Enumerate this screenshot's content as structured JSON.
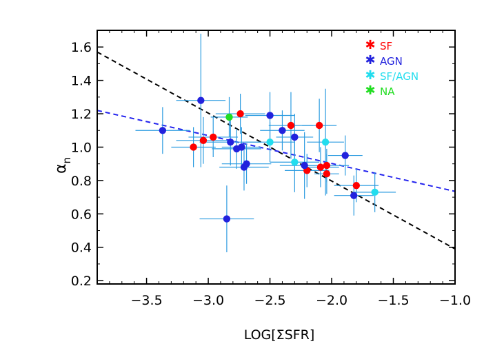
{
  "chart_data": {
    "type": "scatter",
    "title": "",
    "xlabel": "LOG[ΣSFR]",
    "ylabel_main": "α",
    "ylabel_sub": "n",
    "xlim": [
      -3.9,
      -1.0
    ],
    "ylim": [
      0.18,
      1.7
    ],
    "x_ticks": [
      -3.5,
      -3.0,
      -2.5,
      -2.0,
      -1.5,
      -1.0
    ],
    "x_tick_labels": [
      "−3.5",
      "−3.0",
      "−2.5",
      "−2.0",
      "−1.5",
      "−1.0"
    ],
    "y_ticks": [
      0.2,
      0.4,
      0.6,
      0.8,
      1.0,
      1.2,
      1.4,
      1.6
    ],
    "y_tick_labels": [
      "0.2",
      "0.4",
      "0.6",
      "0.8",
      "1.0",
      "1.2",
      "1.4",
      "1.6"
    ],
    "grid": false,
    "legend_position": "top-right",
    "colors": {
      "SF": "#ff0000",
      "AGN": "#2222dd",
      "SF/AGN": "#22ddee",
      "NA": "#22dd22",
      "errorbar": "#2b9be0"
    },
    "series": [
      {
        "name": "SF",
        "color": "#ff0000",
        "points": [
          {
            "x": -3.12,
            "y": 1.0,
            "xerr": 0.18,
            "yerr": 0.12
          },
          {
            "x": -3.04,
            "y": 1.04,
            "xerr": 0.22,
            "yerr": 0.14
          },
          {
            "x": -2.96,
            "y": 1.06,
            "xerr": 0.2,
            "yerr": 0.12
          },
          {
            "x": -2.74,
            "y": 1.2,
            "xerr": 0.2,
            "yerr": 0.12
          },
          {
            "x": -2.33,
            "y": 1.13,
            "xerr": 0.18,
            "yerr": 0.2
          },
          {
            "x": -2.1,
            "y": 1.13,
            "xerr": 0.14,
            "yerr": 0.16
          },
          {
            "x": -2.2,
            "y": 0.86,
            "xerr": 0.18,
            "yerr": 0.1
          },
          {
            "x": -2.09,
            "y": 0.88,
            "xerr": 0.15,
            "yerr": 0.12
          },
          {
            "x": -2.04,
            "y": 0.89,
            "xerr": 0.18,
            "yerr": 0.1
          },
          {
            "x": -2.04,
            "y": 0.84,
            "xerr": 0.1,
            "yerr": 0.12
          },
          {
            "x": -1.8,
            "y": 0.77,
            "xerr": 0.18,
            "yerr": 0.1
          }
        ]
      },
      {
        "name": "AGN",
        "color": "#2222dd",
        "points": [
          {
            "x": -3.37,
            "y": 1.1,
            "xerr": 0.22,
            "yerr": 0.14
          },
          {
            "x": -3.06,
            "y": 1.28,
            "xerr": 0.2,
            "yerr": 0.4
          },
          {
            "x": -2.82,
            "y": 1.03,
            "xerr": 0.25,
            "yerr": 0.14
          },
          {
            "x": -2.77,
            "y": 0.99,
            "xerr": 0.2,
            "yerr": 0.12
          },
          {
            "x": -2.73,
            "y": 1.0,
            "xerr": 0.16,
            "yerr": 0.12
          },
          {
            "x": -2.71,
            "y": 0.88,
            "xerr": 0.2,
            "yerr": 0.14
          },
          {
            "x": -2.69,
            "y": 0.9,
            "xerr": 0.2,
            "yerr": 0.12
          },
          {
            "x": -2.85,
            "y": 0.57,
            "xerr": 0.22,
            "yerr": 0.2
          },
          {
            "x": -2.5,
            "y": 1.19,
            "xerr": 0.2,
            "yerr": 0.14
          },
          {
            "x": -2.4,
            "y": 1.1,
            "xerr": 0.18,
            "yerr": 0.12
          },
          {
            "x": -2.3,
            "y": 1.06,
            "xerr": 0.15,
            "yerr": 0.14
          },
          {
            "x": -2.22,
            "y": 0.89,
            "xerr": 0.2,
            "yerr": 0.2
          },
          {
            "x": -1.89,
            "y": 0.95,
            "xerr": 0.14,
            "yerr": 0.12
          },
          {
            "x": -1.82,
            "y": 0.71,
            "xerr": 0.16,
            "yerr": 0.12
          }
        ]
      },
      {
        "name": "SF/AGN",
        "color": "#22ddee",
        "points": [
          {
            "x": -2.5,
            "y": 1.03,
            "xerr": 0.2,
            "yerr": 0.12
          },
          {
            "x": -2.3,
            "y": 0.91,
            "xerr": 0.2,
            "yerr": 0.18
          },
          {
            "x": -2.05,
            "y": 1.03,
            "xerr": 0.15,
            "yerr": 0.32
          },
          {
            "x": -1.65,
            "y": 0.73,
            "xerr": 0.17,
            "yerr": 0.12
          }
        ]
      },
      {
        "name": "NA",
        "color": "#22dd22",
        "points": [
          {
            "x": -2.83,
            "y": 1.18,
            "xerr": 0.15,
            "yerr": 0.12
          }
        ]
      }
    ],
    "fit_lines": [
      {
        "name": "fit-black",
        "color": "#000000",
        "x": [
          -3.9,
          -1.0
        ],
        "y": [
          1.57,
          0.39
        ]
      },
      {
        "name": "fit-blue",
        "color": "#2222ee",
        "x": [
          -3.9,
          -1.0
        ],
        "y": [
          1.22,
          0.735
        ]
      }
    ]
  }
}
